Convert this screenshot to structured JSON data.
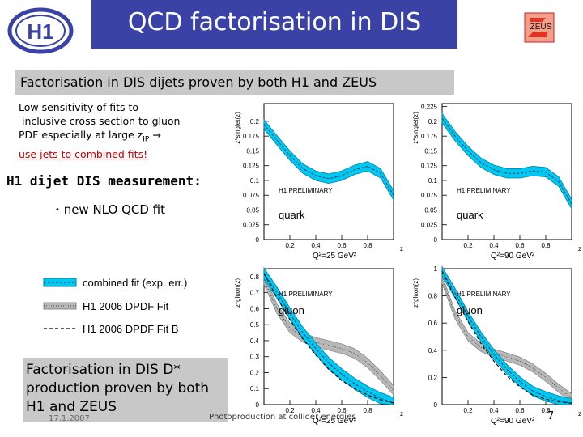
{
  "slide": {
    "title": "QCD factorisation in DIS",
    "subtitle": "Factorisation in DIS dijets proven by both H1 and ZEUS",
    "notes_lines": [
      "Low sensitivity of fits to",
      " inclusive cross section to gluon",
      "PDF especially at large z"
    ],
    "notes_sub": "IP",
    "notes_arrow": "→",
    "notes_red": "use jets to combined fits!",
    "h1_heading": "H1 dijet DIS measurement:",
    "bullet_mark": "•",
    "bullet_text": "new NLO QCD fit",
    "bottom_text": "Factorisation in DIS D* production proven by both H1 and ZEUS",
    "date": "17.1.2007",
    "footer": "Photoproduction at collider energies",
    "page_number": "7"
  },
  "logos": {
    "left": "H1",
    "right": "ZEUS"
  },
  "legend": [
    {
      "label": "combined fit (exp. err.)",
      "style": "band"
    },
    {
      "label": "H1 2006 DPDF Fit",
      "style": "dotted-band"
    },
    {
      "label": "H1 2006 DPDF Fit B",
      "style": "dashed"
    }
  ],
  "colors": {
    "title_bg": "#3a42a6",
    "band": "#00c8f0",
    "grey_box": "#c8c8c8",
    "red": "#c00000"
  },
  "chart_data": [
    {
      "type": "line",
      "title": "",
      "ylabel": "z*singlet(z)",
      "xlabel": "z",
      "annotations": [
        "H1 PRELIMINARY",
        "quark",
        "Q²=25 GeV²"
      ],
      "yticks": [
        "0",
        "0.025",
        "0.05",
        "0.075",
        "0.1",
        "0.125",
        "0.15",
        "0.175",
        "0.2"
      ],
      "xticks": [
        "0.2",
        "0.4",
        "0.6",
        "0.8"
      ],
      "ylim": [
        0,
        0.23
      ],
      "xlim": [
        0,
        1
      ],
      "x": [
        0.0,
        0.1,
        0.2,
        0.3,
        0.4,
        0.5,
        0.6,
        0.7,
        0.8,
        0.9,
        1.0
      ],
      "series": [
        {
          "values": [
            0.195,
            0.168,
            0.142,
            0.12,
            0.108,
            0.103,
            0.108,
            0.118,
            0.124,
            0.112,
            0.075
          ]
        }
      ]
    },
    {
      "type": "line",
      "title": "",
      "ylabel": "z*singlet(z)",
      "xlabel": "z",
      "annotations": [
        "H1 PRELIMINARY",
        "quark",
        "Q²=90 GeV²"
      ],
      "yticks": [
        "0",
        "0.025",
        "0.05",
        "0.075",
        "0.1",
        "0.125",
        "0.15",
        "0.175",
        "0.2",
        "0.225"
      ],
      "xticks": [
        "0.2",
        "0.4",
        "0.6",
        "0.8"
      ],
      "ylim": [
        0,
        0.23
      ],
      "xlim": [
        0,
        1
      ],
      "x": [
        0.0,
        0.1,
        0.2,
        0.3,
        0.4,
        0.5,
        0.6,
        0.7,
        0.8,
        0.9,
        1.0
      ],
      "series": [
        {
          "values": [
            0.205,
            0.175,
            0.15,
            0.13,
            0.118,
            0.112,
            0.112,
            0.116,
            0.114,
            0.098,
            0.06
          ]
        }
      ]
    },
    {
      "type": "line",
      "title": "",
      "ylabel": "z*gluon(z)",
      "xlabel": "z",
      "annotations": [
        "H1 PRELIMINARY",
        "gluon",
        "Q²=25 GeV²"
      ],
      "yticks": [
        "0",
        "0.1",
        "0.2",
        "0.3",
        "0.4",
        "0.5",
        "0.6",
        "0.7",
        "0.8"
      ],
      "xticks": [
        "0.2",
        "0.4",
        "0.6",
        "0.8"
      ],
      "ylim": [
        0,
        0.85
      ],
      "xlim": [
        0,
        1
      ],
      "x": [
        0.0,
        0.1,
        0.2,
        0.3,
        0.4,
        0.5,
        0.6,
        0.7,
        0.8,
        0.9,
        1.0
      ],
      "series": [
        {
          "values": [
            0.82,
            0.7,
            0.57,
            0.45,
            0.35,
            0.26,
            0.19,
            0.13,
            0.08,
            0.04,
            0.01
          ]
        },
        {
          "values": [
            0.78,
            0.6,
            0.48,
            0.42,
            0.39,
            0.37,
            0.35,
            0.32,
            0.26,
            0.18,
            0.09
          ]
        },
        {
          "values": [
            0.82,
            0.67,
            0.53,
            0.41,
            0.31,
            0.22,
            0.15,
            0.1,
            0.06,
            0.03,
            0.01
          ]
        }
      ]
    },
    {
      "type": "line",
      "title": "",
      "ylabel": "z*gluon(z)",
      "xlabel": "z",
      "annotations": [
        "H1 PRELIMINARY",
        "gluon",
        "Q²=90 GeV²"
      ],
      "yticks": [
        "0",
        "0.2",
        "0.4",
        "0.6",
        "0.8",
        "1"
      ],
      "xticks": [
        "0.2",
        "0.4",
        "0.6",
        "0.8"
      ],
      "ylim": [
        0,
        1.0
      ],
      "xlim": [
        0,
        1
      ],
      "x": [
        0.0,
        0.1,
        0.2,
        0.3,
        0.4,
        0.5,
        0.6,
        0.7,
        0.8,
        0.9,
        1.0
      ],
      "series": [
        {
          "values": [
            0.98,
            0.82,
            0.65,
            0.5,
            0.37,
            0.26,
            0.17,
            0.1,
            0.06,
            0.03,
            0.01
          ]
        },
        {
          "values": [
            0.92,
            0.66,
            0.5,
            0.42,
            0.38,
            0.35,
            0.32,
            0.27,
            0.2,
            0.12,
            0.05
          ]
        },
        {
          "values": [
            0.98,
            0.79,
            0.61,
            0.45,
            0.32,
            0.21,
            0.13,
            0.07,
            0.04,
            0.02,
            0.01
          ]
        }
      ]
    }
  ]
}
